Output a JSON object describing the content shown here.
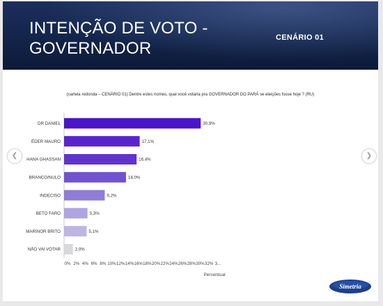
{
  "slide": {
    "title_line1": "INTENÇÃO DE VOTO -",
    "title_line2": "GOVERNADOR",
    "scenario": "CENÁRIO 01",
    "question": "(cartela redonda – CENÁRIO 01) Dentre estes nomes, qual você votaria pra GOVERNADOR DO PARÁ se eleições fosse hoje ? (RU)",
    "prev_icon": "chevron-left-icon",
    "next_icon": "chevron-right-icon",
    "logo_text": "Simetria"
  },
  "chart_data": {
    "type": "bar",
    "orientation": "horizontal",
    "categories": [
      "DR DANIEL",
      "ÉDER MAURO",
      "HANA GHASSAN",
      "BRANCO/NULO",
      "INDECISO",
      "BETO FARO",
      "MARINOR BRITO",
      "NÃO VAI VOTAR"
    ],
    "values": [
      30.9,
      17.1,
      16.4,
      14.0,
      9.2,
      5.3,
      5.1,
      2.0
    ],
    "value_labels": [
      "30,9%",
      "17,1%",
      "16,4%",
      "14,0%",
      "9,2%",
      "5,3%",
      "5,1%",
      "2,0%"
    ],
    "colors": [
      "#4a14c9",
      "#5a24cc",
      "#6133cd",
      "#7152d1",
      "#8f7dd6",
      "#aea4e0",
      "#beb5e4",
      "#d9d9dc"
    ],
    "xlim": [
      0,
      33
    ],
    "x_ticks": [
      "0%",
      "2%",
      "4%",
      "6%",
      "8%",
      "10%",
      "12%",
      "14%",
      "16%",
      "18%",
      "20%",
      "22%",
      "24%",
      "26%",
      "28%",
      "30%",
      "32%",
      "3..."
    ],
    "xlabel": "Percentual",
    "ylabel": "",
    "legend": "none",
    "grid": false
  }
}
